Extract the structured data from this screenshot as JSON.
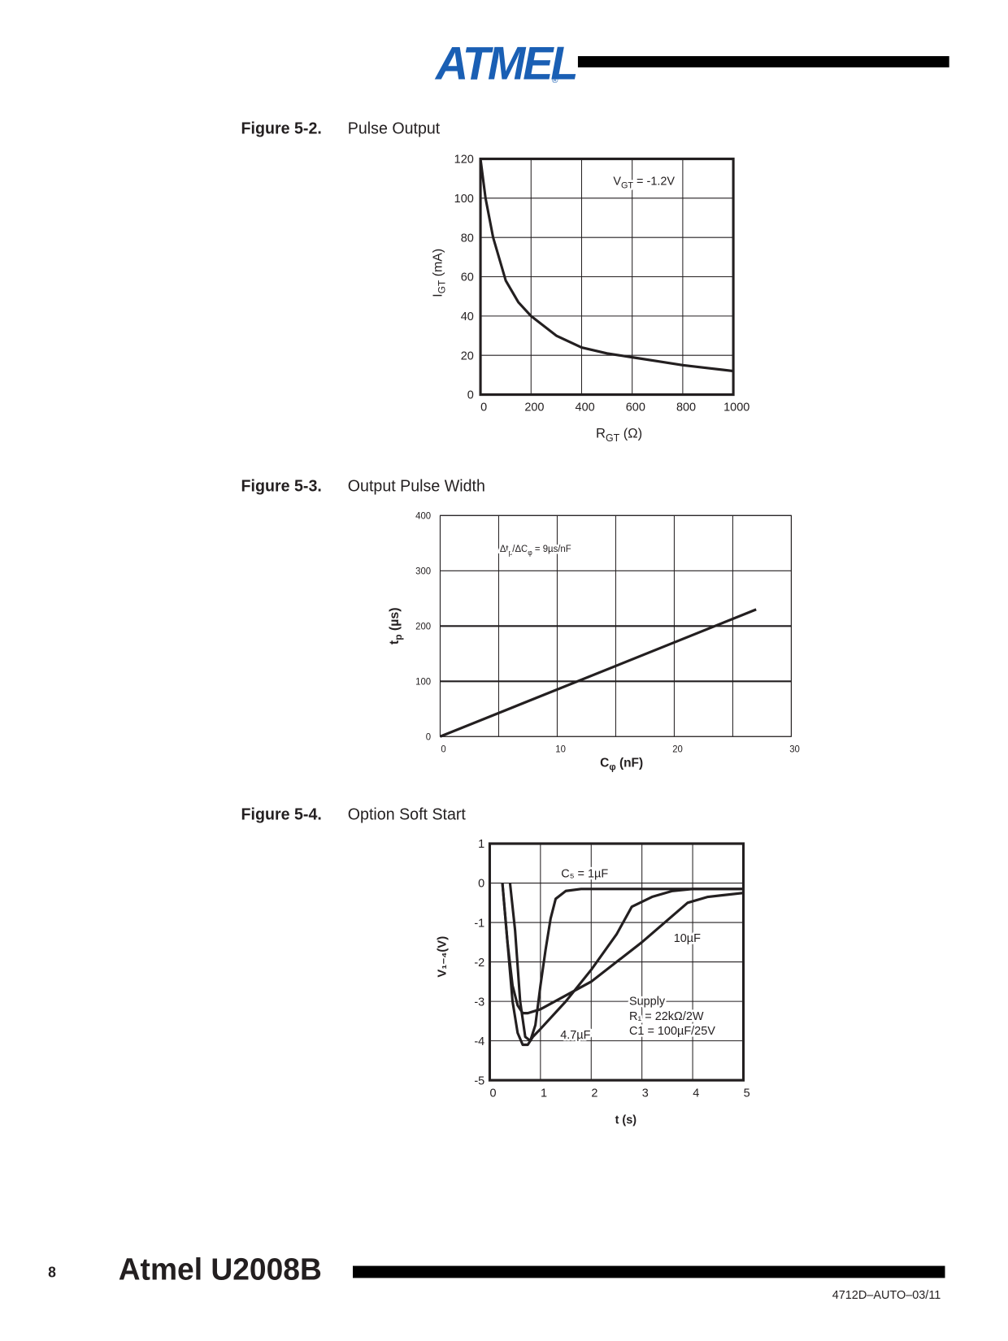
{
  "header": {
    "logo": "ATMEL",
    "logo_mark": "®"
  },
  "figures": [
    {
      "label": "Figure 5-2.",
      "caption": "Pulse Output"
    },
    {
      "label": "Figure 5-3.",
      "caption": "Output Pulse Width"
    },
    {
      "label": "Figure 5-4.",
      "caption": "Option Soft Start"
    }
  ],
  "chart_data": [
    {
      "type": "line",
      "x": [
        0,
        20,
        50,
        100,
        150,
        200,
        300,
        400,
        500,
        600,
        700,
        800,
        900,
        1000
      ],
      "values": [
        120,
        100,
        80,
        58,
        47,
        40,
        30,
        24,
        21,
        19,
        17,
        15,
        13.5,
        12
      ],
      "color": "#231f20",
      "xlim": [
        0,
        1000
      ],
      "ylim": [
        0,
        120
      ],
      "xticks": [
        0,
        200,
        400,
        600,
        800,
        1000
      ],
      "yticks": [
        0,
        20,
        40,
        60,
        80,
        100,
        120
      ],
      "grid": true,
      "xlabel": [
        "R",
        "GT",
        " (Ω)"
      ],
      "ylabel": [
        "I",
        "GT",
        " (mA)"
      ],
      "annotation": [
        "V",
        "GT",
        " = -1.2V"
      ]
    },
    {
      "type": "line",
      "x": [
        0,
        27
      ],
      "values": [
        0,
        230
      ],
      "color": "#231f20",
      "xlim": [
        0,
        30
      ],
      "ylim": [
        0,
        400
      ],
      "xticks": [
        0,
        10,
        20,
        30
      ],
      "xgrid": [
        5,
        15,
        25
      ],
      "yticks": [
        0,
        100,
        200,
        300,
        400
      ],
      "grid": true,
      "xlabel": [
        "C",
        "φ",
        " (nF)"
      ],
      "ylabel": [
        "t",
        "p",
        " (µs)"
      ],
      "annotation": [
        "Δt",
        "p",
        "/ΔC",
        "φ",
        " = 9µs/nF"
      ]
    },
    {
      "type": "line",
      "color": "#231f20",
      "xlim": [
        0,
        5
      ],
      "ylim": [
        -5,
        1
      ],
      "xticks": [
        0,
        1,
        2,
        3,
        4,
        5
      ],
      "yticks": [
        1,
        0,
        -1,
        -2,
        -3,
        -4,
        -5
      ],
      "grid": true,
      "xlabel": [
        "t (s)"
      ],
      "ylabel": [
        "V₁₋₄(V)"
      ],
      "series": [
        {
          "name": "C₅ = 1µF",
          "x": [
            0.4,
            0.5,
            0.6,
            0.7,
            0.8,
            0.9,
            1.0,
            1.1,
            1.2,
            1.3,
            1.5,
            1.8,
            5
          ],
          "values": [
            0,
            -1.2,
            -3,
            -3.9,
            -4.0,
            -3.6,
            -2.6,
            -1.7,
            -0.9,
            -0.4,
            -0.2,
            -0.15,
            -0.15
          ]
        },
        {
          "name": "4.7µF",
          "x": [
            0.25,
            0.35,
            0.45,
            0.55,
            0.65,
            0.75,
            0.85,
            1.0,
            1.5,
            2.0,
            2.5,
            2.8,
            3.2,
            3.6,
            4.0,
            5
          ],
          "values": [
            0,
            -1.5,
            -3,
            -3.8,
            -4.1,
            -4.1,
            -3.9,
            -3.7,
            -3.0,
            -2.2,
            -1.3,
            -0.6,
            -0.35,
            -0.2,
            -0.15,
            -0.15
          ]
        },
        {
          "name": "10µF",
          "x": [
            0.25,
            0.35,
            0.45,
            0.55,
            0.65,
            0.75,
            1.0,
            2.0,
            3.0,
            3.9,
            4.3,
            5
          ],
          "values": [
            0,
            -1.5,
            -2.6,
            -3.1,
            -3.3,
            -3.3,
            -3.2,
            -2.5,
            -1.5,
            -0.5,
            -0.35,
            -0.25
          ]
        }
      ],
      "note": [
        "Supply",
        "R₁ = 22kΩ/2W",
        "C1 = 100µF/25V"
      ]
    }
  ],
  "footer": {
    "page": "8",
    "title": "Atmel U2008B",
    "doc_id": "4712D–AUTO–03/11"
  }
}
